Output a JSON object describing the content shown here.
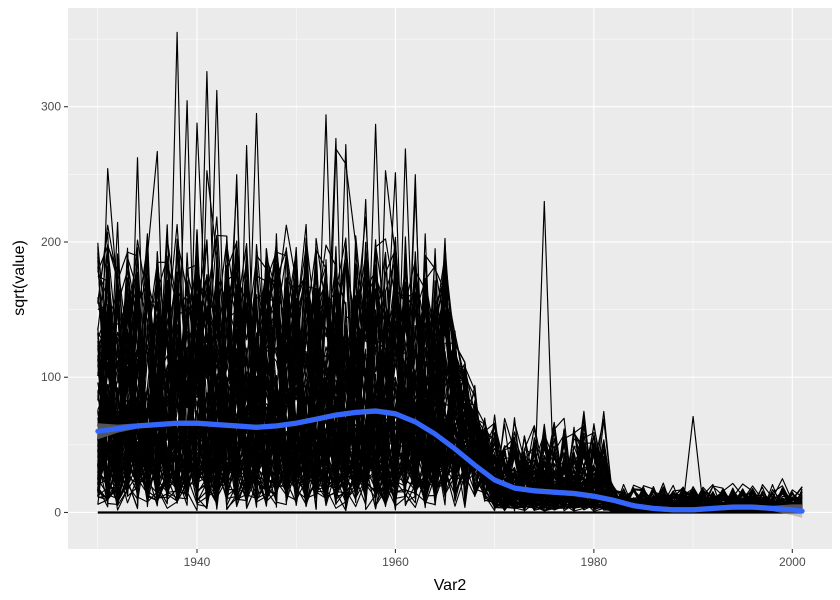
{
  "chart_data": {
    "type": "line",
    "xlabel": "Var2",
    "ylabel": "sqrt(value)",
    "xlim": [
      1927,
      2004
    ],
    "ylim": [
      -27,
      373
    ],
    "x_ticks": [
      1940,
      1960,
      1980,
      2000
    ],
    "y_ticks": [
      0,
      100,
      200,
      300
    ],
    "x_tick_labels": [
      "1940",
      "1960",
      "1980",
      "2000"
    ],
    "y_tick_labels": [
      "0",
      "100",
      "200",
      "300"
    ],
    "x_range": [
      1930,
      2001
    ],
    "panel_background": "#ebebeb",
    "grid_color": "#ffffff",
    "line_color": "#000000",
    "smooth_color": "#3366ff",
    "smooth_ci_color": "#999999",
    "baseline_value": 0,
    "spikes": [
      {
        "x": 1938,
        "y": 355
      },
      {
        "x": 1941,
        "y": 326
      },
      {
        "x": 1942,
        "y": 312
      },
      {
        "x": 1946,
        "y": 295
      },
      {
        "x": 1953,
        "y": 294
      },
      {
        "x": 1955,
        "y": 272
      },
      {
        "x": 1958,
        "y": 287
      },
      {
        "x": 1962,
        "y": 237
      },
      {
        "x": 1975,
        "y": 230
      },
      {
        "x": 1990,
        "y": 71
      },
      {
        "x": 1999,
        "y": 25
      }
    ],
    "series": [
      {
        "name": "",
        "x": [
          1930,
          1932,
          1934,
          1936,
          1938,
          1940,
          1942,
          1944,
          1946,
          1948,
          1950,
          1952,
          1954,
          1956,
          1958,
          1960,
          1962,
          1964,
          1966,
          1968,
          1970,
          1972,
          1974,
          1976,
          1978,
          1980,
          1982,
          1984,
          1986,
          1988,
          1990,
          1992,
          1994,
          1996,
          1998,
          2000,
          2001
        ],
        "y": [
          60,
          62,
          64,
          65,
          66,
          66,
          65,
          64,
          63,
          64,
          66,
          69,
          72,
          74,
          75,
          73,
          67,
          58,
          47,
          35,
          24,
          18,
          16,
          15,
          14,
          12,
          9,
          5,
          3,
          2,
          2,
          3,
          4,
          4,
          3,
          2,
          1
        ],
        "ci_halfwidth": [
          6,
          3,
          2,
          2,
          2,
          2,
          2,
          2,
          2,
          2,
          2,
          2,
          2,
          2,
          2,
          2,
          2,
          2,
          2,
          2,
          2,
          2,
          2,
          2,
          2,
          2,
          2,
          2,
          2,
          2,
          2,
          2,
          2,
          2,
          2,
          4,
          5
        ]
      }
    ]
  }
}
